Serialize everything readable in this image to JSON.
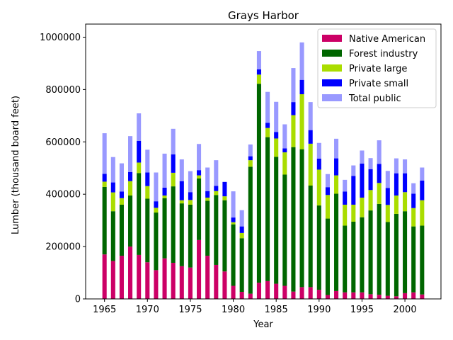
{
  "chart_data": {
    "type": "bar",
    "stacked": true,
    "title": "Grays Harbor",
    "xlabel": "Year",
    "ylabel": "Lumber (thousand board feet)",
    "xlim": [
      1962.8,
      2004.2
    ],
    "ylim": [
      0,
      1050000
    ],
    "x_ticks": [
      1965,
      1970,
      1975,
      1980,
      1985,
      1990,
      1995,
      2000
    ],
    "y_ticks": [
      0,
      200000,
      400000,
      600000,
      800000,
      1000000
    ],
    "grid": false,
    "legend_position": "top-right",
    "categories": [
      1965,
      1966,
      1967,
      1968,
      1969,
      1970,
      1971,
      1972,
      1973,
      1974,
      1975,
      1976,
      1977,
      1978,
      1979,
      1980,
      1981,
      1982,
      1983,
      1984,
      1985,
      1986,
      1987,
      1988,
      1989,
      1990,
      1991,
      1992,
      1993,
      1994,
      1995,
      1996,
      1997,
      1998,
      1999,
      2000,
      2001,
      2002
    ],
    "series": [
      {
        "name": "Native American",
        "color": "#cc0066",
        "values": [
          170000,
          145000,
          165000,
          200000,
          168000,
          140000,
          110000,
          155000,
          138000,
          125000,
          120000,
          225000,
          165000,
          130000,
          105000,
          50000,
          27000,
          20000,
          62000,
          68000,
          58000,
          50000,
          28000,
          45000,
          45000,
          35000,
          15000,
          30000,
          25000,
          25000,
          25000,
          18000,
          16000,
          12000,
          10000,
          22000,
          25000,
          17000
        ]
      },
      {
        "name": "Forest industry",
        "color": "#006600",
        "values": [
          258000,
          190000,
          195000,
          195000,
          313000,
          243000,
          220000,
          230000,
          292000,
          240000,
          240000,
          235000,
          210000,
          267000,
          272000,
          235000,
          205000,
          485000,
          760000,
          550000,
          485000,
          425000,
          552000,
          527000,
          388000,
          322000,
          292000,
          372000,
          255000,
          270000,
          287000,
          320000,
          347000,
          282000,
          315000,
          313000,
          252000,
          263000
        ]
      },
      {
        "name": "Private large",
        "color": "#aadd00",
        "values": [
          20000,
          72000,
          25000,
          55000,
          40000,
          48000,
          18000,
          10000,
          52000,
          12000,
          18000,
          12000,
          12000,
          15000,
          15000,
          8000,
          20000,
          25000,
          35000,
          35000,
          70000,
          85000,
          122000,
          210000,
          160000,
          137000,
          90000,
          70000,
          80000,
          65000,
          75000,
          78000,
          80000,
          65000,
          70000,
          73000,
          70000,
          97000
        ]
      },
      {
        "name": "Private small",
        "color": "#0000ff",
        "values": [
          30000,
          38000,
          25000,
          35000,
          83000,
          52000,
          25000,
          30000,
          70000,
          73000,
          30000,
          20000,
          25000,
          20000,
          55000,
          18000,
          25000,
          15000,
          20000,
          20000,
          25000,
          15000,
          50000,
          55000,
          52000,
          42000,
          30000,
          65000,
          50000,
          110000,
          130000,
          80000,
          73000,
          65000,
          85000,
          72000,
          55000,
          75000
        ]
      },
      {
        "name": "Total public",
        "color": "#9999ff",
        "values": [
          155000,
          97000,
          108000,
          137000,
          105000,
          87000,
          110000,
          130000,
          98000,
          83000,
          80000,
          100000,
          90000,
          98000,
          0,
          100000,
          62000,
          45000,
          70000,
          118000,
          115000,
          92000,
          130000,
          143000,
          107000,
          60000,
          50000,
          75000,
          45000,
          40000,
          50000,
          42000,
          90000,
          65000,
          57000,
          53000,
          40000,
          50000
        ]
      }
    ]
  }
}
